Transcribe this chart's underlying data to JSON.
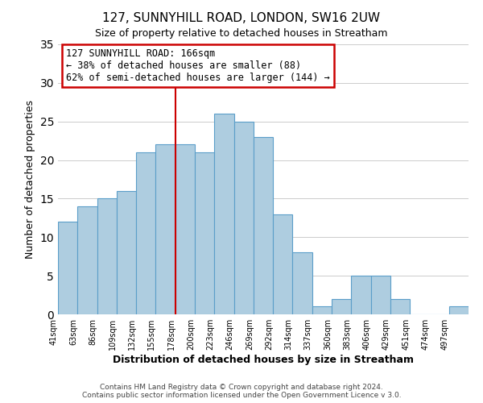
{
  "title": "127, SUNNYHILL ROAD, LONDON, SW16 2UW",
  "subtitle": "Size of property relative to detached houses in Streatham",
  "xlabel": "Distribution of detached houses by size in Streatham",
  "ylabel": "Number of detached properties",
  "footer_line1": "Contains HM Land Registry data © Crown copyright and database right 2024.",
  "footer_line2": "Contains public sector information licensed under the Open Government Licence v 3.0.",
  "bin_labels": [
    "41sqm",
    "63sqm",
    "86sqm",
    "109sqm",
    "132sqm",
    "155sqm",
    "178sqm",
    "200sqm",
    "223sqm",
    "246sqm",
    "269sqm",
    "292sqm",
    "314sqm",
    "337sqm",
    "360sqm",
    "383sqm",
    "406sqm",
    "429sqm",
    "451sqm",
    "474sqm",
    "497sqm"
  ],
  "bar_heights": [
    12,
    14,
    15,
    16,
    21,
    22,
    22,
    21,
    26,
    25,
    23,
    13,
    8,
    1,
    2,
    5,
    5,
    2,
    0,
    0,
    1
  ],
  "bar_color": "#aecde0",
  "bar_edge_color": "#5b9ec9",
  "annotation_title": "127 SUNNYHILL ROAD: 166sqm",
  "annotation_line1": "← 38% of detached houses are smaller (88)",
  "annotation_line2": "62% of semi-detached houses are larger (144) →",
  "annotation_box_color": "#ffffff",
  "annotation_box_edge": "#cc0000",
  "vline_color": "#cc0000",
  "ylim": [
    0,
    35
  ],
  "yticks": [
    0,
    5,
    10,
    15,
    20,
    25,
    30,
    35
  ],
  "background_color": "#ffffff",
  "grid_color": "#cccccc"
}
